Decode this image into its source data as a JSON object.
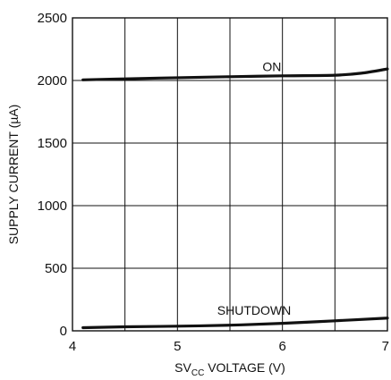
{
  "chart_data": {
    "type": "line",
    "xlabel": {
      "prefix": "SV",
      "subscript": "CC",
      "suffix": " VOLTAGE (V)"
    },
    "ylabel": "SUPPLY CURRENT (µA)",
    "xlim": [
      4,
      7
    ],
    "ylim": [
      0,
      2500
    ],
    "x_ticks": [
      4,
      5,
      6,
      7
    ],
    "x_tick_labels": [
      "4",
      "5",
      "6",
      "7"
    ],
    "y_ticks": [
      0,
      500,
      1000,
      1500,
      2000,
      2500
    ],
    "y_tick_labels": [
      "0",
      "500",
      "1000",
      "1500",
      "2000",
      "2500"
    ],
    "x_grid": [
      4.5,
      5,
      5.5,
      6,
      6.5
    ],
    "y_grid": [
      500,
      1000,
      1500,
      2000
    ],
    "grid": true,
    "legend": "none",
    "series": [
      {
        "name": "ON",
        "label_at": [
          5.9,
          2075
        ],
        "x": [
          4.1,
          4.5,
          5.0,
          5.5,
          6.0,
          6.5,
          6.75,
          7.0
        ],
        "y": [
          2005,
          2013,
          2022,
          2030,
          2037,
          2042,
          2058,
          2092
        ]
      },
      {
        "name": "SHUTDOWN",
        "label_at": [
          5.73,
          130
        ],
        "x": [
          4.1,
          4.5,
          5.0,
          5.5,
          6.0,
          6.5,
          7.0
        ],
        "y": [
          25,
          32,
          37,
          45,
          60,
          80,
          102
        ]
      }
    ]
  }
}
